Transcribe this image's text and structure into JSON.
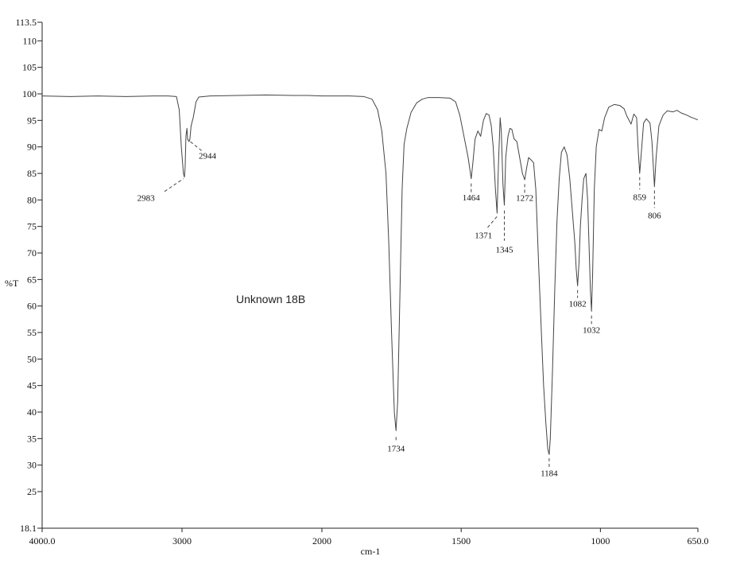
{
  "chart_data": {
    "type": "line",
    "title": "",
    "annotation": "Unknown 18B",
    "xlabel": "cm-1",
    "ylabel": "%T",
    "xlim": [
      4000.0,
      650.0
    ],
    "ylim": [
      18.1,
      113.5
    ],
    "x_ticks": [
      {
        "value": 4000,
        "label": "4000.0"
      },
      {
        "value": 3000,
        "label": "3000"
      },
      {
        "value": 2000,
        "label": "2000"
      },
      {
        "value": 1500,
        "label": "1500"
      },
      {
        "value": 1000,
        "label": "1000"
      },
      {
        "value": 650,
        "label": "650.0"
      }
    ],
    "y_ticks": [
      {
        "value": 113.5,
        "label": "113.5"
      },
      {
        "value": 110,
        "label": "110"
      },
      {
        "value": 105,
        "label": "105"
      },
      {
        "value": 100,
        "label": "100"
      },
      {
        "value": 95,
        "label": "95"
      },
      {
        "value": 90,
        "label": "90"
      },
      {
        "value": 85,
        "label": "85"
      },
      {
        "value": 80,
        "label": "80"
      },
      {
        "value": 75,
        "label": "75"
      },
      {
        "value": 70,
        "label": "70"
      },
      {
        "value": 65,
        "label": "65"
      },
      {
        "value": 60,
        "label": "60"
      },
      {
        "value": 55,
        "label": "55"
      },
      {
        "value": 50,
        "label": "50"
      },
      {
        "value": 45,
        "label": "45"
      },
      {
        "value": 40,
        "label": "40"
      },
      {
        "value": 35,
        "label": "35"
      },
      {
        "value": 30,
        "label": "30"
      },
      {
        "value": 25,
        "label": "25"
      },
      {
        "value": 18.1,
        "label": "18.1"
      }
    ],
    "series": [
      {
        "points": [
          [
            4000,
            99.6
          ],
          [
            3800,
            99.5
          ],
          [
            3600,
            99.6
          ],
          [
            3400,
            99.5
          ],
          [
            3200,
            99.6
          ],
          [
            3100,
            99.6
          ],
          [
            3040,
            99.5
          ],
          [
            3020,
            97.0
          ],
          [
            3005,
            90.0
          ],
          [
            2990,
            85.0
          ],
          [
            2983,
            84.3
          ],
          [
            2978,
            86.0
          ],
          [
            2972,
            92.0
          ],
          [
            2965,
            93.5
          ],
          [
            2960,
            91.5
          ],
          [
            2950,
            91.0
          ],
          [
            2944,
            91.4
          ],
          [
            2935,
            94.0
          ],
          [
            2920,
            95.5
          ],
          [
            2900,
            98.5
          ],
          [
            2880,
            99.4
          ],
          [
            2800,
            99.6
          ],
          [
            2600,
            99.7
          ],
          [
            2400,
            99.8
          ],
          [
            2200,
            99.7
          ],
          [
            2100,
            99.7
          ],
          [
            2000,
            99.6
          ],
          [
            1900,
            99.6
          ],
          [
            1850,
            99.5
          ],
          [
            1820,
            99.0
          ],
          [
            1800,
            97.0
          ],
          [
            1785,
            93.0
          ],
          [
            1770,
            85.0
          ],
          [
            1760,
            72.0
          ],
          [
            1750,
            55.0
          ],
          [
            1740,
            40.0
          ],
          [
            1734,
            36.5
          ],
          [
            1728,
            42.0
          ],
          [
            1720,
            62.0
          ],
          [
            1712,
            82.0
          ],
          [
            1705,
            90.5
          ],
          [
            1695,
            93.5
          ],
          [
            1680,
            96.5
          ],
          [
            1660,
            98.3
          ],
          [
            1640,
            99.0
          ],
          [
            1620,
            99.3
          ],
          [
            1580,
            99.3
          ],
          [
            1540,
            99.2
          ],
          [
            1520,
            98.5
          ],
          [
            1505,
            96.0
          ],
          [
            1490,
            92.0
          ],
          [
            1475,
            88.0
          ],
          [
            1464,
            84.0
          ],
          [
            1458,
            87.0
          ],
          [
            1450,
            91.5
          ],
          [
            1440,
            93.0
          ],
          [
            1430,
            92.0
          ],
          [
            1420,
            95.0
          ],
          [
            1410,
            96.3
          ],
          [
            1400,
            96.0
          ],
          [
            1392,
            94.0
          ],
          [
            1385,
            90.0
          ],
          [
            1377,
            82.0
          ],
          [
            1371,
            77.5
          ],
          [
            1366,
            87.0
          ],
          [
            1360,
            95.5
          ],
          [
            1356,
            93.0
          ],
          [
            1350,
            83.0
          ],
          [
            1345,
            79.0
          ],
          [
            1340,
            88.0
          ],
          [
            1332,
            92.0
          ],
          [
            1325,
            93.5
          ],
          [
            1318,
            93.3
          ],
          [
            1310,
            91.5
          ],
          [
            1300,
            91.0
          ],
          [
            1290,
            88.0
          ],
          [
            1280,
            85.0
          ],
          [
            1272,
            83.8
          ],
          [
            1265,
            86.0
          ],
          [
            1258,
            88.0
          ],
          [
            1248,
            87.5
          ],
          [
            1240,
            87.0
          ],
          [
            1232,
            82.0
          ],
          [
            1222,
            68.0
          ],
          [
            1212,
            55.0
          ],
          [
            1204,
            45.0
          ],
          [
            1196,
            38.0
          ],
          [
            1189,
            33.0
          ],
          [
            1184,
            32.0
          ],
          [
            1180,
            35.0
          ],
          [
            1172,
            48.0
          ],
          [
            1164,
            63.0
          ],
          [
            1156,
            76.0
          ],
          [
            1148,
            84.0
          ],
          [
            1140,
            89.0
          ],
          [
            1130,
            90.0
          ],
          [
            1120,
            88.5
          ],
          [
            1110,
            84.0
          ],
          [
            1104,
            80.0
          ],
          [
            1098,
            76.0
          ],
          [
            1092,
            72.0
          ],
          [
            1087,
            67.0
          ],
          [
            1082,
            63.8
          ],
          [
            1077,
            68.0
          ],
          [
            1072,
            75.0
          ],
          [
            1066,
            80.0
          ],
          [
            1060,
            84.0
          ],
          [
            1052,
            85.0
          ],
          [
            1046,
            80.0
          ],
          [
            1040,
            70.0
          ],
          [
            1036,
            63.0
          ],
          [
            1032,
            59.0
          ],
          [
            1028,
            66.0
          ],
          [
            1022,
            82.0
          ],
          [
            1015,
            90.0
          ],
          [
            1005,
            93.3
          ],
          [
            995,
            93.0
          ],
          [
            985,
            95.5
          ],
          [
            970,
            97.5
          ],
          [
            950,
            98.0
          ],
          [
            930,
            97.8
          ],
          [
            915,
            97.2
          ],
          [
            905,
            95.8
          ],
          [
            890,
            94.3
          ],
          [
            880,
            96.2
          ],
          [
            870,
            95.5
          ],
          [
            865,
            90.0
          ],
          [
            859,
            85.0
          ],
          [
            853,
            89.0
          ],
          [
            845,
            94.5
          ],
          [
            835,
            95.3
          ],
          [
            822,
            94.5
          ],
          [
            815,
            91.0
          ],
          [
            806,
            82.5
          ],
          [
            800,
            88.0
          ],
          [
            790,
            94.0
          ],
          [
            775,
            96.0
          ],
          [
            760,
            96.8
          ],
          [
            740,
            96.6
          ],
          [
            725,
            96.9
          ],
          [
            710,
            96.4
          ],
          [
            690,
            96.0
          ],
          [
            675,
            95.6
          ],
          [
            660,
            95.3
          ],
          [
            650,
            95.1
          ]
        ]
      }
    ],
    "peak_labels": [
      {
        "label": "2983",
        "x": 2983,
        "y": 84.3,
        "text_x": 3258,
        "text_y": 79.8,
        "dash": [
          3125,
          81.6,
          2990,
          84.0
        ]
      },
      {
        "label": "2944",
        "x": 2944,
        "y": 91.4,
        "text_x": 2818,
        "text_y": 87.8,
        "dash": [
          2860,
          89.3,
          2960,
          91.4
        ]
      },
      {
        "label": "1734",
        "x": 1734,
        "y": 36.5,
        "text_x": 1734,
        "text_y": 32.6,
        "dash": [
          1734,
          35.3,
          1734,
          34.6
        ]
      },
      {
        "label": "1464",
        "x": 1464,
        "y": 84.0,
        "text_x": 1464,
        "text_y": 79.9,
        "dash": [
          1464,
          83.1,
          1464,
          81.2
        ]
      },
      {
        "label": "1371",
        "x": 1371,
        "y": 77.5,
        "text_x": 1420,
        "text_y": 72.8,
        "dash": [
          1405,
          74.8,
          1371,
          76.9
        ]
      },
      {
        "label": "1345",
        "x": 1345,
        "y": 79.0,
        "text_x": 1345,
        "text_y": 70.1,
        "dash": [
          1345,
          78.0,
          1345,
          72.3
        ]
      },
      {
        "label": "1272",
        "x": 1272,
        "y": 83.8,
        "text_x": 1272,
        "text_y": 79.8,
        "dash": [
          1272,
          83.0,
          1272,
          81.0
        ]
      },
      {
        "label": "1184",
        "x": 1184,
        "y": 32.0,
        "text_x": 1184,
        "text_y": 27.9,
        "dash": [
          1184,
          31.3,
          1184,
          29.6
        ]
      },
      {
        "label": "1082",
        "x": 1082,
        "y": 63.8,
        "text_x": 1082,
        "text_y": 59.9,
        "dash": [
          1082,
          63.0,
          1082,
          61.5
        ]
      },
      {
        "label": "1032",
        "x": 1032,
        "y": 59.0,
        "text_x": 1032,
        "text_y": 54.9,
        "dash": [
          1032,
          58.2,
          1032,
          56.6
        ]
      },
      {
        "label": "859",
        "x": 859,
        "y": 85.0,
        "text_x": 859,
        "text_y": 80.0,
        "dash": [
          859,
          84.3,
          859,
          82.0
        ]
      },
      {
        "label": "806",
        "x": 806,
        "y": 82.5,
        "text_x": 806,
        "text_y": 76.5,
        "dash": [
          806,
          81.8,
          806,
          78.5
        ]
      }
    ],
    "grid": false,
    "legend": "none",
    "colors": {
      "line": "#444444",
      "axis": "#222222",
      "text": "#111111",
      "background": "#ffffff"
    }
  }
}
